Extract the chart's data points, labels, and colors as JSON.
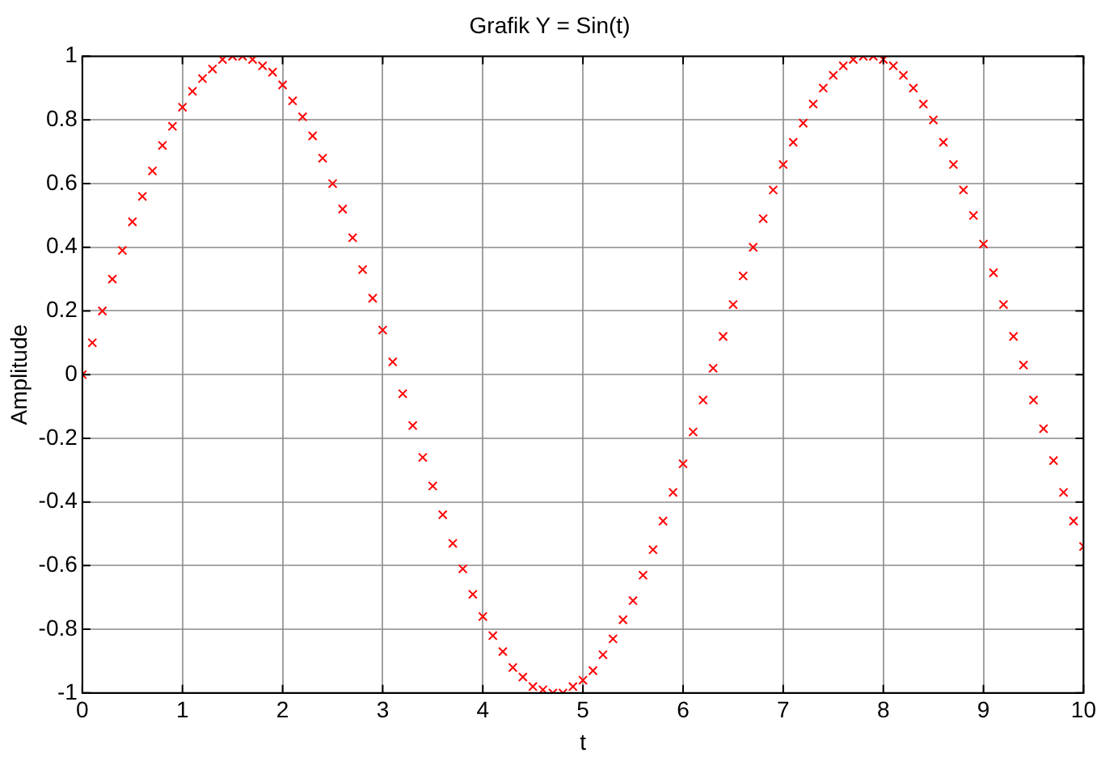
{
  "chart_data": {
    "type": "scatter",
    "title": "Grafik Y = Sin(t)",
    "xlabel": "t",
    "ylabel": "Amplitude",
    "x": [
      0,
      0.1,
      0.2,
      0.3,
      0.4,
      0.5,
      0.6,
      0.7,
      0.8,
      0.9,
      1,
      1.1,
      1.2,
      1.3,
      1.4,
      1.5,
      1.6,
      1.7,
      1.8,
      1.9,
      2,
      2.1,
      2.2,
      2.3,
      2.4,
      2.5,
      2.6,
      2.7,
      2.8,
      2.9,
      3,
      3.1,
      3.2,
      3.3,
      3.4,
      3.5,
      3.6,
      3.7,
      3.8,
      3.9,
      4,
      4.1,
      4.2,
      4.3,
      4.4,
      4.5,
      4.6,
      4.7,
      4.8,
      4.9,
      5,
      5.1,
      5.2,
      5.3,
      5.4,
      5.5,
      5.6,
      5.7,
      5.8,
      5.9,
      6,
      6.1,
      6.2,
      6.3,
      6.4,
      6.5,
      6.6,
      6.7,
      6.8,
      6.9,
      7,
      7.1,
      7.2,
      7.3,
      7.4,
      7.5,
      7.6,
      7.7,
      7.8,
      7.9,
      8,
      8.1,
      8.2,
      8.3,
      8.4,
      8.5,
      8.6,
      8.7,
      8.8,
      8.9,
      9,
      9.1,
      9.2,
      9.3,
      9.4,
      9.5,
      9.6,
      9.7,
      9.8,
      9.9,
      10
    ],
    "series": [
      {
        "color": "#ff0000",
        "values": [
          0,
          0.1,
          0.2,
          0.3,
          0.39,
          0.48,
          0.56,
          0.64,
          0.72,
          0.78,
          0.84,
          0.89,
          0.93,
          0.96,
          0.99,
          1.0,
          1.0,
          0.99,
          0.97,
          0.95,
          0.91,
          0.86,
          0.81,
          0.75,
          0.68,
          0.6,
          0.52,
          0.43,
          0.33,
          0.24,
          0.14,
          0.04,
          -0.06,
          -0.16,
          -0.26,
          -0.35,
          -0.44,
          -0.53,
          -0.61,
          -0.69,
          -0.76,
          -0.82,
          -0.87,
          -0.92,
          -0.95,
          -0.98,
          -0.99,
          -1.0,
          -1.0,
          -0.98,
          -0.96,
          -0.93,
          -0.88,
          -0.83,
          -0.77,
          -0.71,
          -0.63,
          -0.55,
          -0.46,
          -0.37,
          -0.28,
          -0.18,
          -0.08,
          0.02,
          0.12,
          0.22,
          0.31,
          0.4,
          0.49,
          0.58,
          0.66,
          0.73,
          0.79,
          0.85,
          0.9,
          0.94,
          0.97,
          0.99,
          1.0,
          1.0,
          0.99,
          0.97,
          0.94,
          0.9,
          0.85,
          0.8,
          0.73,
          0.66,
          0.58,
          0.5,
          0.41,
          0.32,
          0.22,
          0.12,
          0.03,
          -0.08,
          -0.17,
          -0.27,
          -0.37,
          -0.46,
          -0.54
        ]
      }
    ],
    "xlim": [
      0,
      10
    ],
    "xticks": [
      0,
      1,
      2,
      3,
      4,
      5,
      6,
      7,
      8,
      9,
      10
    ],
    "ylim": [
      -1,
      1
    ],
    "yticks": [
      -1,
      -0.8,
      -0.6,
      -0.4,
      -0.2,
      0,
      0.2,
      0.4,
      0.6,
      0.8,
      1
    ],
    "grid": true,
    "marker": "cross",
    "legend": false
  }
}
